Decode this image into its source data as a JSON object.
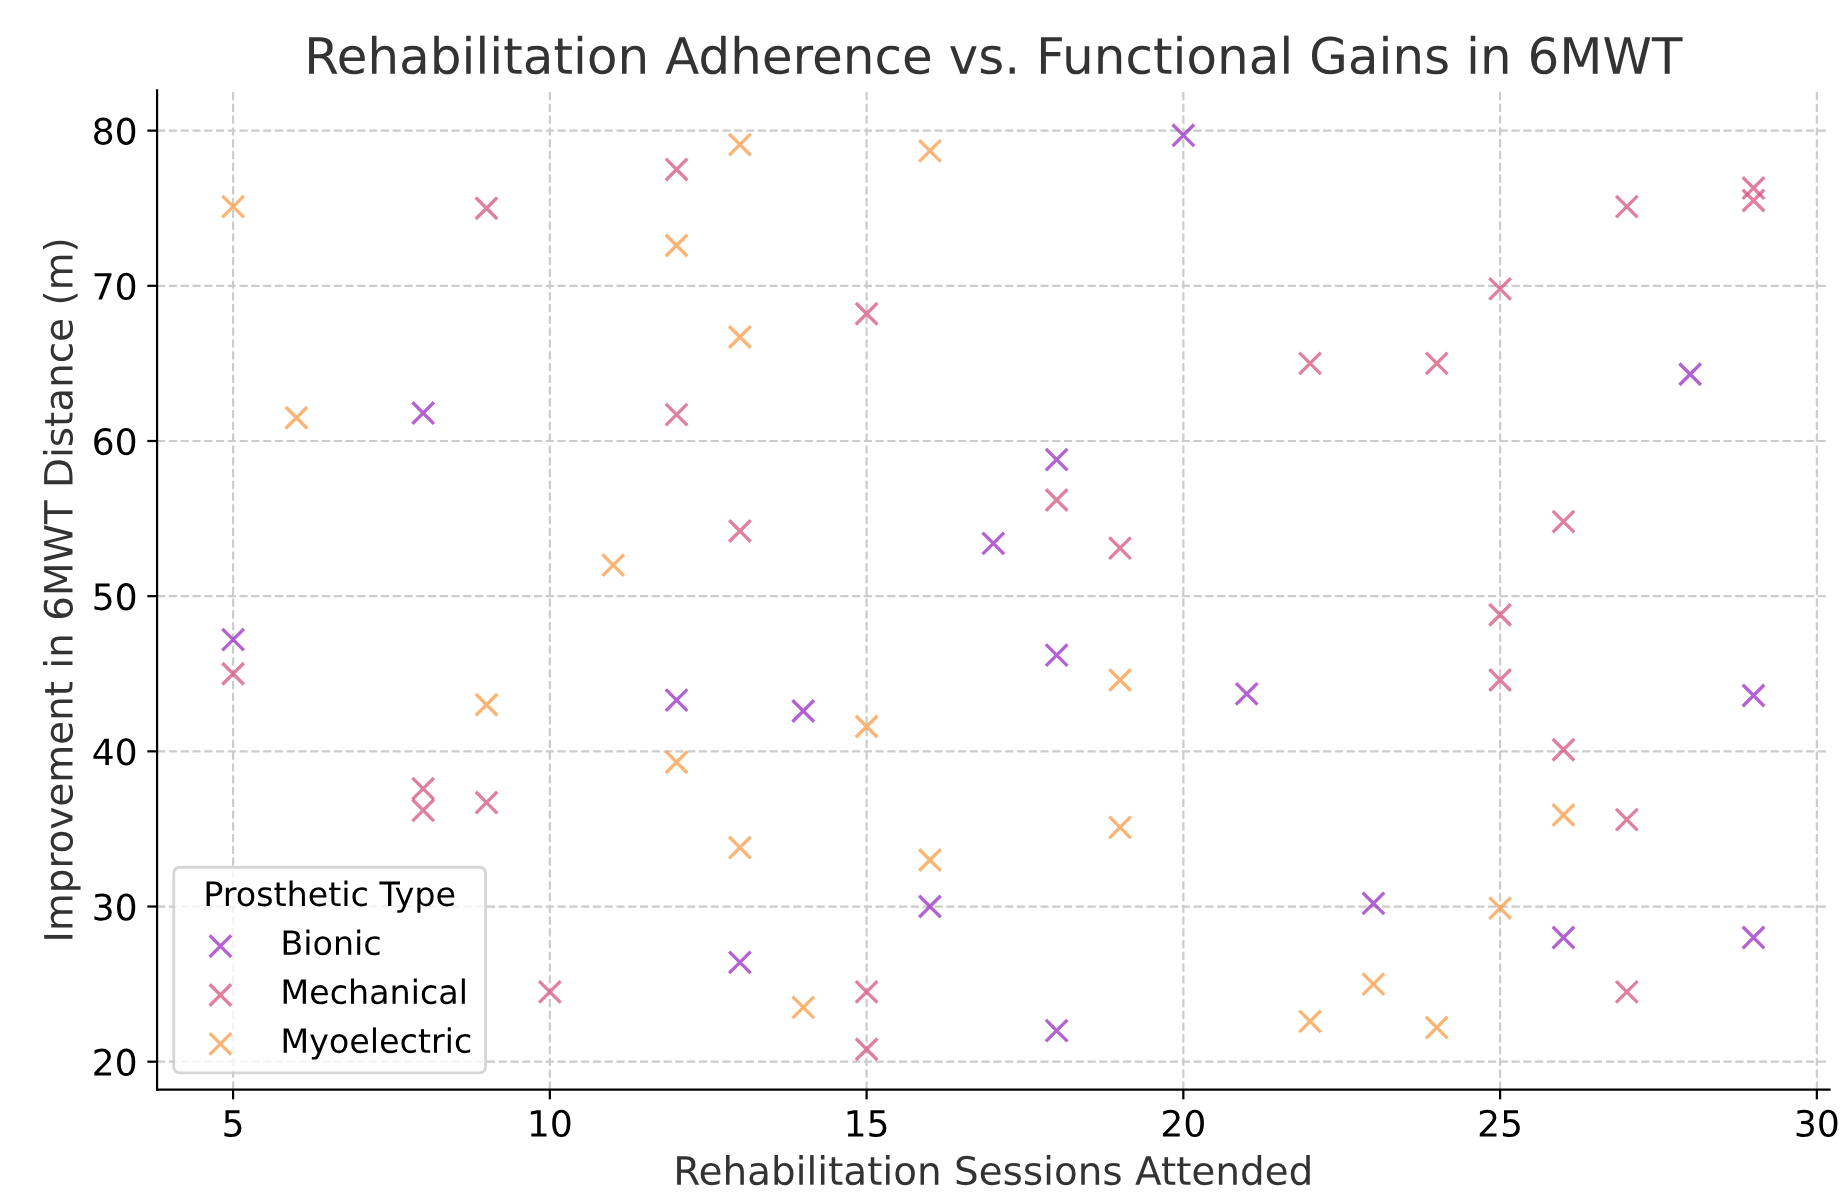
{
  "chart_data": {
    "type": "scatter",
    "title": "Rehabilitation Adherence vs. Functional Gains in 6MWT",
    "xlabel": "Rehabilitation Sessions Attended",
    "ylabel": "Improvement in 6MWT Distance (m)",
    "legend_title": "Prosthetic Type",
    "legend": "bottom left",
    "grid": true,
    "marker": "cross",
    "xlim": [
      3.8,
      30.2
    ],
    "xticks": [
      5,
      10,
      15,
      20,
      25,
      30
    ],
    "ylim": [
      18.2,
      82.6
    ],
    "yticks": [
      20,
      30,
      40,
      50,
      60,
      70,
      80
    ],
    "series": [
      {
        "name": "Bionic",
        "color": "#9a2cc4",
        "x": [
          20,
          8,
          28,
          18,
          17,
          18,
          5,
          12,
          14,
          21,
          29,
          16,
          23,
          26,
          29,
          13,
          18
        ],
        "values": [
          79.7,
          61.8,
          64.3,
          58.8,
          53.4,
          46.2,
          47.2,
          43.3,
          42.6,
          43.7,
          43.6,
          30,
          30.2,
          28,
          28,
          26.4,
          22
        ]
      },
      {
        "name": "Mechanical",
        "color": "#d6557c",
        "x": [
          12,
          9,
          29,
          29,
          27,
          25,
          15,
          22,
          24,
          12,
          26,
          13,
          18,
          19,
          25,
          5,
          25,
          26,
          8,
          8,
          9,
          27,
          10,
          15,
          15,
          27
        ],
        "values": [
          77.5,
          75,
          76.3,
          75.5,
          75.1,
          69.8,
          68.2,
          65,
          65,
          61.7,
          54.8,
          54.2,
          56.2,
          53.1,
          48.8,
          45,
          44.6,
          40.1,
          37.6,
          36.2,
          36.7,
          35.6,
          24.5,
          24.5,
          20.8,
          24.5
        ]
      },
      {
        "name": "Myoelectric",
        "color": "#f99b45",
        "x": [
          5,
          13,
          16,
          12,
          13,
          6,
          11,
          9,
          19,
          12,
          15,
          19,
          26,
          13,
          16,
          25,
          23,
          14,
          22,
          24
        ],
        "values": [
          75.1,
          79.1,
          78.7,
          72.6,
          66.7,
          61.5,
          52,
          43,
          44.6,
          39.3,
          41.6,
          35.1,
          35.9,
          33.8,
          33,
          29.9,
          25,
          23.5,
          22.6,
          22.2
        ]
      }
    ]
  }
}
